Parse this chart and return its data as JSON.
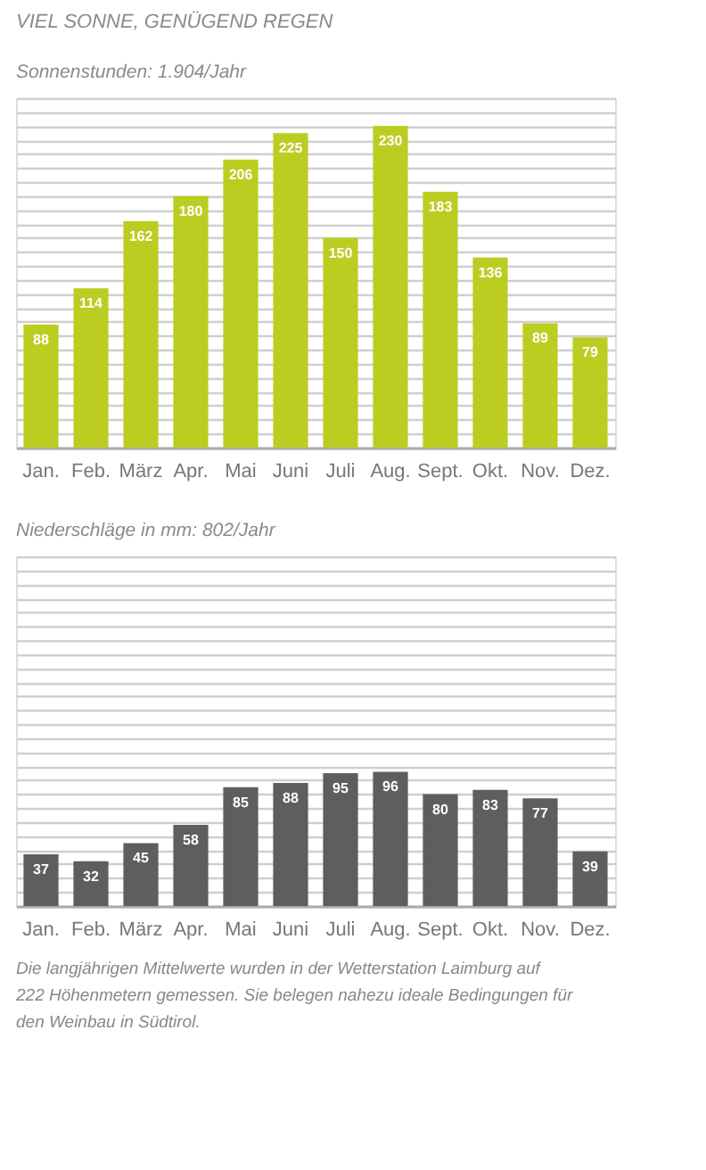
{
  "chart_data": [
    {
      "type": "bar",
      "title": "VIEL SONNE, GENÜGEND REGEN",
      "subtitle": "Sonnenstunden: 1.904/Jahr",
      "categories": [
        "Jan.",
        "Feb.",
        "März",
        "Apr.",
        "Mai",
        "Juni",
        "Juli",
        "Aug.",
        "Sept.",
        "Okt.",
        "Nov.",
        "Dez."
      ],
      "values": [
        88,
        114,
        162,
        180,
        206,
        225,
        150,
        230,
        183,
        136,
        89,
        79
      ],
      "color": "#bccd22",
      "data_labels": true,
      "ylim": [
        0,
        250
      ],
      "grid": "y",
      "tick_labels": "x"
    },
    {
      "type": "bar",
      "title": "Niederschläge in mm: 802/Jahr",
      "categories": [
        "Jan.",
        "Feb.",
        "März",
        "Apr.",
        "Mai",
        "Juni",
        "Juli",
        "Aug.",
        "Sept.",
        "Okt.",
        "Nov.",
        "Dez."
      ],
      "values": [
        37,
        32,
        45,
        58,
        85,
        88,
        95,
        96,
        80,
        83,
        77,
        39
      ],
      "color": "#5f5d60",
      "data_labels": true,
      "ylim": [
        0,
        250
      ],
      "grid": "y",
      "tick_labels": "x",
      "annotations": [
        "Die langjährigen Mittelwerte wurden in der Wetterstation Laimburg auf 222 Höhenmetern gemessen. Sie belegen nahezu ideale Bedingungen für den Weinbau in Südtirol."
      ]
    }
  ]
}
